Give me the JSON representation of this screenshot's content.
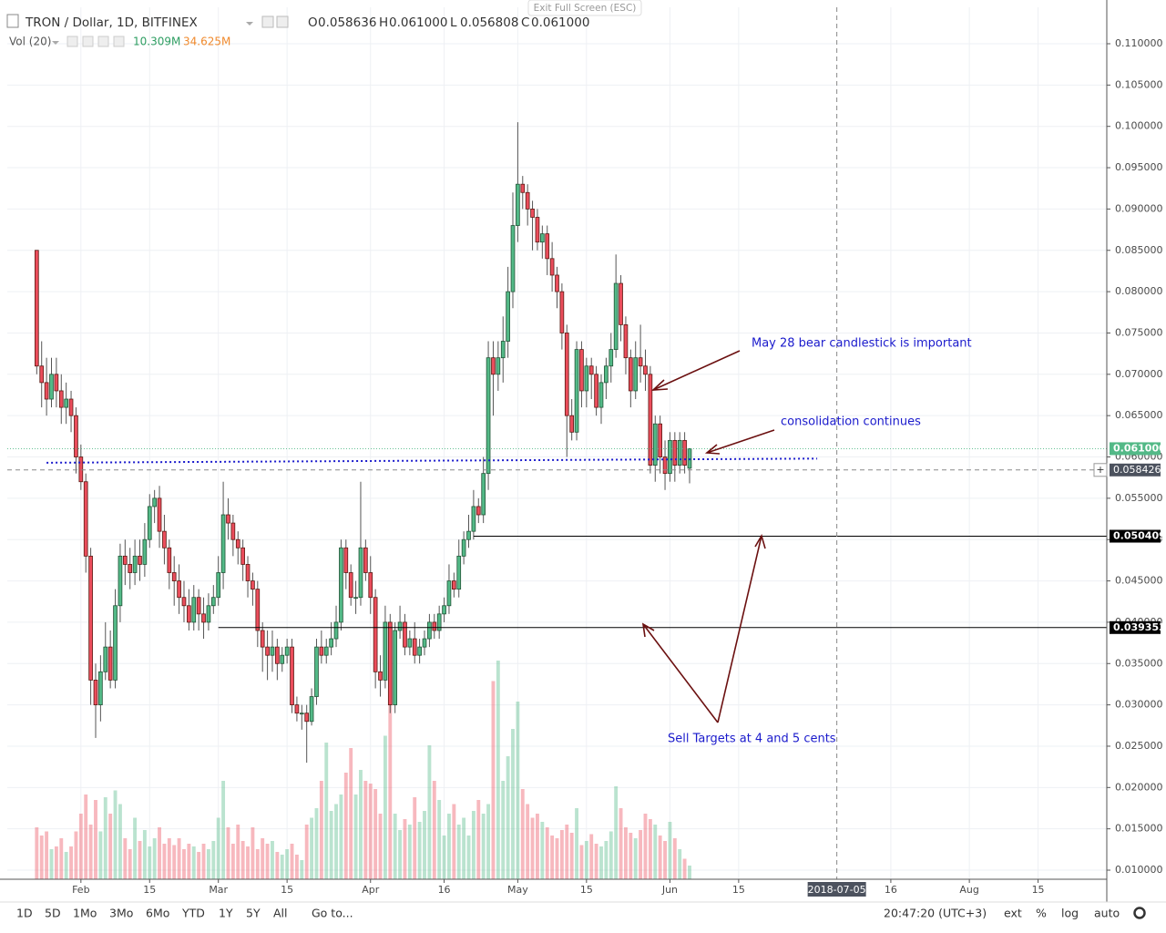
{
  "header": {
    "symbol": "TRON / Dollar, 1D, BITFINEX",
    "exit": "Exit Full Screen (ESC)",
    "ohlc": [
      {
        "key": "O",
        "value": "0.058636"
      },
      {
        "key": "H",
        "value": "0.061000"
      },
      {
        "key": "L",
        "value": "0.056808"
      },
      {
        "key": "C",
        "value": "0.061000"
      }
    ],
    "volume": {
      "name": "Vol (20)",
      "value": "10.309M",
      "ma": "34.625M"
    }
  },
  "toolbar": {
    "ranges": [
      "1D",
      "5D",
      "1Mo",
      "3Mo",
      "6Mo",
      "YTD",
      "1Y",
      "5Y",
      "All"
    ],
    "goto": "Go to...",
    "clock": "20:47:20 (UTC+3)",
    "options": [
      "ext",
      "%",
      "log",
      "auto"
    ]
  },
  "annotations": [
    {
      "text": "May 28 bear candlestick is important"
    },
    {
      "text": "consolidation continues"
    },
    {
      "text": "Sell Targets at 4 and 5 cents"
    }
  ],
  "chart_data": {
    "type": "candlestick",
    "up_color": "#53b987",
    "down_color": "#eb4d5c",
    "grid": true,
    "xlim": [
      "2018-01-17",
      "2018-08-29"
    ],
    "ylim": [
      0.0089,
      0.11441
    ],
    "x": [
      "2018-01-23",
      "2018-01-24",
      "2018-01-25",
      "2018-01-26",
      "2018-01-27",
      "2018-01-28",
      "2018-01-29",
      "2018-01-30",
      "2018-01-31",
      "2018-02-01",
      "2018-02-02",
      "2018-02-03",
      "2018-02-04",
      "2018-02-05",
      "2018-02-06",
      "2018-02-07",
      "2018-02-08",
      "2018-02-09",
      "2018-02-10",
      "2018-02-11",
      "2018-02-12",
      "2018-02-13",
      "2018-02-14",
      "2018-02-15",
      "2018-02-16",
      "2018-02-17",
      "2018-02-18",
      "2018-02-19",
      "2018-02-20",
      "2018-02-21",
      "2018-02-22",
      "2018-02-23",
      "2018-02-24",
      "2018-02-25",
      "2018-02-26",
      "2018-02-27",
      "2018-02-28",
      "2018-03-01",
      "2018-03-02",
      "2018-03-03",
      "2018-03-04",
      "2018-03-05",
      "2018-03-06",
      "2018-03-07",
      "2018-03-08",
      "2018-03-09",
      "2018-03-10",
      "2018-03-11",
      "2018-03-12",
      "2018-03-13",
      "2018-03-14",
      "2018-03-15",
      "2018-03-16",
      "2018-03-17",
      "2018-03-18",
      "2018-03-19",
      "2018-03-20",
      "2018-03-21",
      "2018-03-22",
      "2018-03-23",
      "2018-03-24",
      "2018-03-25",
      "2018-03-26",
      "2018-03-27",
      "2018-03-28",
      "2018-03-29",
      "2018-03-30",
      "2018-03-31",
      "2018-04-01",
      "2018-04-02",
      "2018-04-03",
      "2018-04-04",
      "2018-04-05",
      "2018-04-06",
      "2018-04-07",
      "2018-04-08",
      "2018-04-09",
      "2018-04-10",
      "2018-04-11",
      "2018-04-12",
      "2018-04-13",
      "2018-04-14",
      "2018-04-15",
      "2018-04-16",
      "2018-04-17",
      "2018-04-18",
      "2018-04-19",
      "2018-04-20",
      "2018-04-21",
      "2018-04-22",
      "2018-04-23",
      "2018-04-24",
      "2018-04-25",
      "2018-04-26",
      "2018-04-27",
      "2018-04-28",
      "2018-04-29",
      "2018-04-30",
      "2018-05-01",
      "2018-05-02",
      "2018-05-03",
      "2018-05-04",
      "2018-05-05",
      "2018-05-06",
      "2018-05-07",
      "2018-05-08",
      "2018-05-09",
      "2018-05-10",
      "2018-05-11",
      "2018-05-12",
      "2018-05-13",
      "2018-05-14",
      "2018-05-15",
      "2018-05-16",
      "2018-05-17",
      "2018-05-18",
      "2018-05-19",
      "2018-05-20",
      "2018-05-21",
      "2018-05-22",
      "2018-05-23",
      "2018-05-24",
      "2018-05-25",
      "2018-05-26",
      "2018-05-27",
      "2018-05-28",
      "2018-05-29",
      "2018-05-30",
      "2018-05-31",
      "2018-06-01",
      "2018-06-02",
      "2018-06-03",
      "2018-06-04",
      "2018-06-05"
    ],
    "open": [
      0.085,
      0.071,
      0.069,
      0.067,
      0.07,
      0.068,
      0.066,
      0.067,
      0.065,
      0.06,
      0.057,
      0.048,
      0.033,
      0.03,
      0.034,
      0.037,
      0.033,
      0.042,
      0.048,
      0.047,
      0.046,
      0.048,
      0.047,
      0.05,
      0.054,
      0.055,
      0.051,
      0.049,
      0.046,
      0.045,
      0.043,
      0.042,
      0.04,
      0.043,
      0.041,
      0.04,
      0.042,
      0.043,
      0.046,
      0.053,
      0.052,
      0.05,
      0.049,
      0.047,
      0.045,
      0.044,
      0.039,
      0.037,
      0.036,
      0.037,
      0.035,
      0.036,
      0.037,
      0.03,
      0.029,
      0.029,
      0.028,
      0.031,
      0.037,
      0.036,
      0.037,
      0.038,
      0.04,
      0.049,
      0.046,
      0.043,
      0.043,
      0.049,
      0.046,
      0.043,
      0.034,
      0.033,
      0.04,
      0.03,
      0.039,
      0.04,
      0.037,
      0.038,
      0.036,
      0.037,
      0.038,
      0.04,
      0.039,
      0.041,
      0.042,
      0.045,
      0.044,
      0.048,
      0.05,
      0.051,
      0.054,
      0.053,
      0.058,
      0.072,
      0.07,
      0.072,
      0.074,
      0.08,
      0.088,
      0.093,
      0.092,
      0.09,
      0.089,
      0.086,
      0.087,
      0.084,
      0.082,
      0.08,
      0.075,
      0.065,
      0.063,
      0.073,
      0.068,
      0.071,
      0.07,
      0.066,
      0.069,
      0.071,
      0.073,
      0.081,
      0.076,
      0.072,
      0.068,
      0.072,
      0.071,
      0.07,
      0.059,
      0.064,
      0.06,
      0.058,
      0.062,
      0.059,
      0.062,
      0.058636
    ],
    "high": [
      0.085,
      0.074,
      0.072,
      0.072,
      0.072,
      0.07,
      0.069,
      0.068,
      0.066,
      0.0615,
      0.058,
      0.049,
      0.035,
      0.036,
      0.04,
      0.039,
      0.044,
      0.0495,
      0.05,
      0.049,
      0.05,
      0.05,
      0.052,
      0.0555,
      0.056,
      0.0565,
      0.053,
      0.05,
      0.048,
      0.047,
      0.045,
      0.044,
      0.0445,
      0.044,
      0.043,
      0.0435,
      0.0445,
      0.048,
      0.057,
      0.055,
      0.053,
      0.051,
      0.05,
      0.048,
      0.046,
      0.045,
      0.04,
      0.039,
      0.039,
      0.038,
      0.037,
      0.038,
      0.038,
      0.031,
      0.03,
      0.03,
      0.032,
      0.038,
      0.039,
      0.038,
      0.04,
      0.042,
      0.05,
      0.05,
      0.047,
      0.045,
      0.057,
      0.05,
      0.048,
      0.044,
      0.036,
      0.042,
      0.041,
      0.04,
      0.042,
      0.041,
      0.039,
      0.04,
      0.038,
      0.039,
      0.041,
      0.041,
      0.042,
      0.043,
      0.047,
      0.046,
      0.05,
      0.051,
      0.053,
      0.056,
      0.055,
      0.06,
      0.074,
      0.074,
      0.074,
      0.077,
      0.083,
      0.092,
      0.1005,
      0.094,
      0.093,
      0.091,
      0.09,
      0.088,
      0.088,
      0.086,
      0.083,
      0.081,
      0.076,
      0.067,
      0.074,
      0.074,
      0.072,
      0.072,
      0.071,
      0.07,
      0.072,
      0.075,
      0.0845,
      0.082,
      0.077,
      0.073,
      0.074,
      0.076,
      0.073,
      0.071,
      0.065,
      0.065,
      0.062,
      0.063,
      0.063,
      0.063,
      0.063,
      0.061
    ],
    "low": [
      0.07,
      0.066,
      0.065,
      0.066,
      0.066,
      0.064,
      0.064,
      0.063,
      0.058,
      0.056,
      0.046,
      0.03,
      0.026,
      0.028,
      0.033,
      0.032,
      0.032,
      0.04,
      0.0445,
      0.044,
      0.0445,
      0.045,
      0.0455,
      0.049,
      0.052,
      0.049,
      0.047,
      0.044,
      0.042,
      0.041,
      0.04,
      0.039,
      0.039,
      0.039,
      0.038,
      0.039,
      0.041,
      0.042,
      0.044,
      0.05,
      0.048,
      0.047,
      0.045,
      0.043,
      0.042,
      0.037,
      0.034,
      0.033,
      0.034,
      0.033,
      0.034,
      0.035,
      0.029,
      0.028,
      0.027,
      0.023,
      0.0275,
      0.03,
      0.035,
      0.035,
      0.036,
      0.037,
      0.039,
      0.044,
      0.042,
      0.041,
      0.042,
      0.045,
      0.041,
      0.032,
      0.031,
      0.032,
      0.029,
      0.029,
      0.038,
      0.036,
      0.036,
      0.035,
      0.035,
      0.036,
      0.037,
      0.038,
      0.038,
      0.04,
      0.041,
      0.043,
      0.043,
      0.047,
      0.049,
      0.05,
      0.052,
      0.052,
      0.056,
      0.065,
      0.068,
      0.069,
      0.072,
      0.078,
      0.086,
      0.09,
      0.088,
      0.085,
      0.085,
      0.084,
      0.082,
      0.08,
      0.078,
      0.073,
      0.06,
      0.062,
      0.062,
      0.066,
      0.066,
      0.067,
      0.065,
      0.064,
      0.067,
      0.069,
      0.072,
      0.074,
      0.07,
      0.066,
      0.067,
      0.069,
      0.068,
      0.058,
      0.057,
      0.058,
      0.056,
      0.057,
      0.057,
      0.058,
      0.058,
      0.056808
    ],
    "close": [
      0.071,
      0.069,
      0.067,
      0.07,
      0.068,
      0.066,
      0.067,
      0.065,
      0.06,
      0.057,
      0.048,
      0.033,
      0.03,
      0.034,
      0.037,
      0.033,
      0.042,
      0.048,
      0.047,
      0.046,
      0.048,
      0.047,
      0.05,
      0.054,
      0.055,
      0.051,
      0.049,
      0.046,
      0.045,
      0.043,
      0.042,
      0.04,
      0.043,
      0.041,
      0.04,
      0.042,
      0.043,
      0.046,
      0.053,
      0.052,
      0.05,
      0.049,
      0.047,
      0.045,
      0.044,
      0.039,
      0.037,
      0.036,
      0.037,
      0.035,
      0.036,
      0.037,
      0.03,
      0.029,
      0.029,
      0.028,
      0.031,
      0.037,
      0.036,
      0.037,
      0.038,
      0.04,
      0.049,
      0.046,
      0.043,
      0.043,
      0.049,
      0.046,
      0.043,
      0.034,
      0.033,
      0.04,
      0.03,
      0.039,
      0.04,
      0.037,
      0.038,
      0.036,
      0.037,
      0.038,
      0.04,
      0.039,
      0.041,
      0.042,
      0.045,
      0.044,
      0.048,
      0.05,
      0.051,
      0.054,
      0.053,
      0.058,
      0.072,
      0.07,
      0.072,
      0.074,
      0.08,
      0.088,
      0.093,
      0.092,
      0.09,
      0.089,
      0.086,
      0.087,
      0.084,
      0.082,
      0.08,
      0.075,
      0.065,
      0.063,
      0.073,
      0.068,
      0.071,
      0.07,
      0.066,
      0.069,
      0.071,
      0.073,
      0.081,
      0.076,
      0.072,
      0.068,
      0.072,
      0.071,
      0.07,
      0.059,
      0.064,
      0.06,
      0.058,
      0.062,
      0.059,
      0.062,
      0.059,
      0.061
    ],
    "volume": [
      38,
      32,
      35,
      22,
      24,
      30,
      20,
      24,
      35,
      48,
      62,
      40,
      58,
      35,
      60,
      48,
      65,
      55,
      30,
      22,
      45,
      28,
      36,
      24,
      30,
      38,
      26,
      30,
      25,
      30,
      22,
      26,
      24,
      20,
      26,
      22,
      28,
      45,
      72,
      38,
      26,
      40,
      28,
      24,
      38,
      22,
      30,
      26,
      28,
      20,
      18,
      22,
      26,
      18,
      14,
      40,
      45,
      52,
      72,
      100,
      50,
      55,
      62,
      78,
      96,
      62,
      80,
      72,
      70,
      66,
      48,
      105,
      158,
      48,
      36,
      44,
      40,
      60,
      42,
      50,
      98,
      72,
      58,
      32,
      48,
      55,
      40,
      45,
      32,
      50,
      58,
      48,
      55,
      145,
      160,
      72,
      90,
      110,
      130,
      66,
      55,
      45,
      48,
      42,
      38,
      32,
      30,
      36,
      40,
      34,
      52,
      25,
      28,
      33,
      26,
      24,
      28,
      35,
      68,
      52,
      38,
      34,
      30,
      36,
      48,
      44,
      40,
      32,
      28,
      42,
      30,
      22,
      15,
      10
    ],
    "yticks": [
      {
        "value": 0.01,
        "label": "0.010000"
      },
      {
        "value": 0.015,
        "label": "0.015000"
      },
      {
        "value": 0.02,
        "label": "0.020000"
      },
      {
        "value": 0.025,
        "label": "0.025000"
      },
      {
        "value": 0.03,
        "label": "0.030000"
      },
      {
        "value": 0.035,
        "label": "0.035000"
      },
      {
        "value": 0.04,
        "label": "0.040000"
      },
      {
        "value": 0.045,
        "label": "0.045000"
      },
      {
        "value": 0.05,
        "label": "0.050000"
      },
      {
        "value": 0.055,
        "label": "0.055000"
      },
      {
        "value": 0.06,
        "label": "0.060000"
      },
      {
        "value": 0.065,
        "label": "0.065000"
      },
      {
        "value": 0.07,
        "label": "0.070000"
      },
      {
        "value": 0.075,
        "label": "0.075000"
      },
      {
        "value": 0.08,
        "label": "0.080000"
      },
      {
        "value": 0.085,
        "label": "0.085000"
      },
      {
        "value": 0.09,
        "label": "0.090000"
      },
      {
        "value": 0.095,
        "label": "0.095000"
      },
      {
        "value": 0.1,
        "label": "0.100000"
      },
      {
        "value": 0.105,
        "label": "0.105000"
      },
      {
        "value": 0.11,
        "label": "0.110000"
      }
    ],
    "xticks": [
      {
        "value": "2018-02-01",
        "label": "Feb"
      },
      {
        "value": "2018-02-15",
        "label": "15"
      },
      {
        "value": "2018-03-01",
        "label": "Mar"
      },
      {
        "value": "2018-03-15",
        "label": "15"
      },
      {
        "value": "2018-04-01",
        "label": "Apr"
      },
      {
        "value": "2018-04-16",
        "label": "16"
      },
      {
        "value": "2018-05-01",
        "label": "May"
      },
      {
        "value": "2018-05-15",
        "label": "15"
      },
      {
        "value": "2018-06-01",
        "label": "Jun"
      },
      {
        "value": "2018-06-15",
        "label": "15"
      },
      {
        "value": "2018-07-16",
        "label": "16"
      },
      {
        "value": "2018-08-01",
        "label": "Aug"
      },
      {
        "value": "2018-08-15",
        "label": "15"
      }
    ],
    "crosshair": {
      "x": "2018-07-05",
      "y": 0.058426
    },
    "levels": [
      {
        "value": 0.061,
        "label": "0.061000",
        "color": "#53b987",
        "style": "dotted"
      },
      {
        "value": 0.050409,
        "start": "2018-04-22",
        "color": "#000000",
        "style": "solid"
      },
      {
        "value": 0.039353,
        "start": "2018-03-01",
        "color": "#000000",
        "style": "solid"
      }
    ],
    "trendline": {
      "x": [
        "2018-01-25",
        "2018-07-01"
      ],
      "y": [
        0.0593,
        0.0598
      ],
      "color": "#1a1acc"
    }
  }
}
